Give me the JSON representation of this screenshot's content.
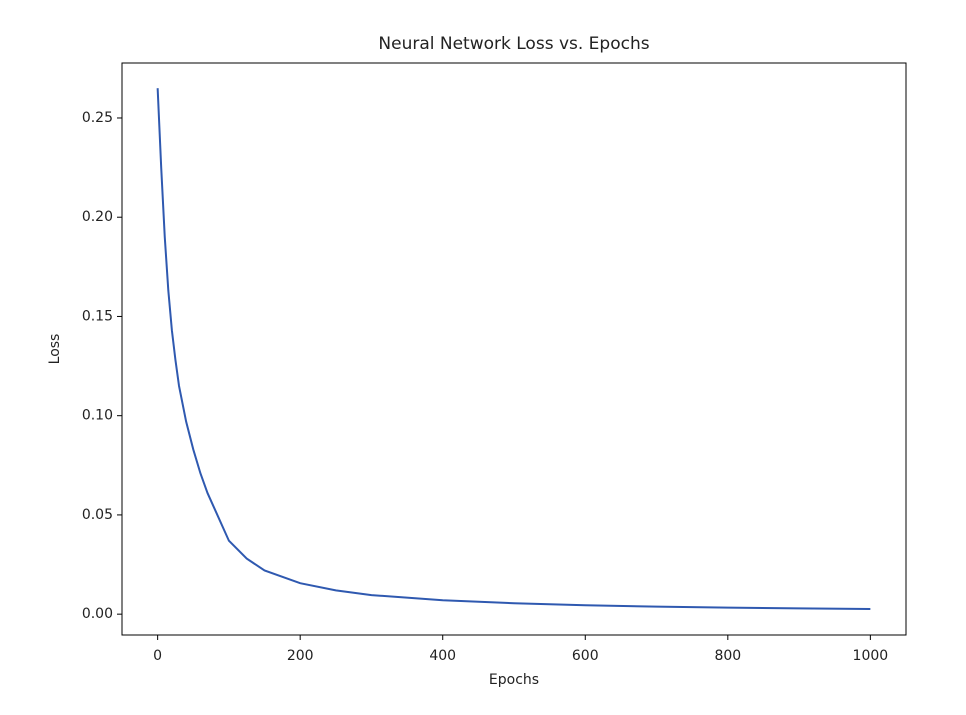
{
  "chart_data": {
    "type": "line",
    "title": "Neural Network Loss vs. Epochs",
    "x_label": "Epochs",
    "y_label": "Loss",
    "x": [
      0,
      5,
      10,
      15,
      20,
      25,
      30,
      40,
      50,
      60,
      70,
      80,
      100,
      125,
      150,
      200,
      250,
      300,
      400,
      500,
      600,
      700,
      800,
      900,
      1000
    ],
    "series": [
      {
        "name": "Loss",
        "color": "#2f59b0",
        "values": [
          0.265,
          0.225,
          0.19,
          0.163,
          0.143,
          0.128,
          0.115,
          0.097,
          0.083,
          0.071,
          0.061,
          0.053,
          0.037,
          0.028,
          0.022,
          0.0156,
          0.012,
          0.0096,
          0.007,
          0.0055,
          0.0045,
          0.0038,
          0.0033,
          0.0029,
          0.0026
        ]
      }
    ],
    "xlim": [
      -50,
      1050
    ],
    "xticks": [
      0,
      200,
      400,
      600,
      800,
      1000
    ],
    "ylim": [
      -0.0105,
      0.2777
    ],
    "yticks": [
      {
        "value": 0,
        "label": "0.00"
      },
      0.05,
      {
        "value": 0.1,
        "label": "0.10"
      },
      0.15,
      {
        "value": 0.2,
        "label": "0.20"
      },
      0.25
    ],
    "grid": false
  }
}
